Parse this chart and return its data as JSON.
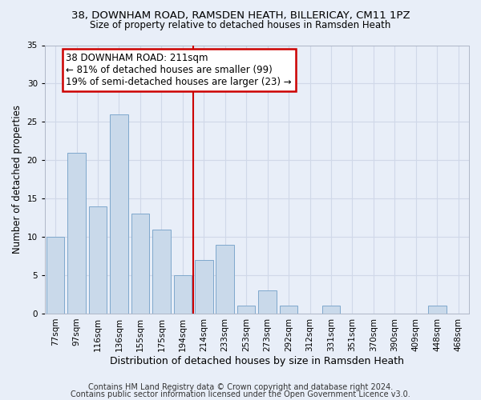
{
  "title1": "38, DOWNHAM ROAD, RAMSDEN HEATH, BILLERICAY, CM11 1PZ",
  "title2": "Size of property relative to detached houses in Ramsden Heath",
  "xlabel": "Distribution of detached houses by size in Ramsden Heath",
  "ylabel": "Number of detached properties",
  "categories": [
    "77sqm",
    "97sqm",
    "116sqm",
    "136sqm",
    "155sqm",
    "175sqm",
    "194sqm",
    "214sqm",
    "233sqm",
    "253sqm",
    "273sqm",
    "292sqm",
    "312sqm",
    "331sqm",
    "351sqm",
    "370sqm",
    "390sqm",
    "409sqm",
    "448sqm",
    "468sqm"
  ],
  "values": [
    10,
    21,
    14,
    26,
    13,
    11,
    5,
    7,
    9,
    1,
    3,
    1,
    0,
    1,
    0,
    0,
    0,
    0,
    1,
    0
  ],
  "bar_color": "#c9d9ea",
  "bar_edge_color": "#7fa8cc",
  "vline_color": "#cc0000",
  "annotation_text": "38 DOWNHAM ROAD: 211sqm\n← 81% of detached houses are smaller (99)\n19% of semi-detached houses are larger (23) →",
  "annotation_box_color": "#ffffff",
  "annotation_box_edge_color": "#cc0000",
  "ylim": [
    0,
    35
  ],
  "yticks": [
    0,
    5,
    10,
    15,
    20,
    25,
    30,
    35
  ],
  "footer1": "Contains HM Land Registry data © Crown copyright and database right 2024.",
  "footer2": "Contains public sector information licensed under the Open Government Licence v3.0.",
  "bg_color": "#e8eef8",
  "grid_color": "#d0d8e8",
  "title1_fontsize": 9.5,
  "title2_fontsize": 8.5,
  "xlabel_fontsize": 9,
  "ylabel_fontsize": 8.5,
  "footer_fontsize": 7,
  "tick_fontsize": 7.5,
  "ann_fontsize": 8.5
}
